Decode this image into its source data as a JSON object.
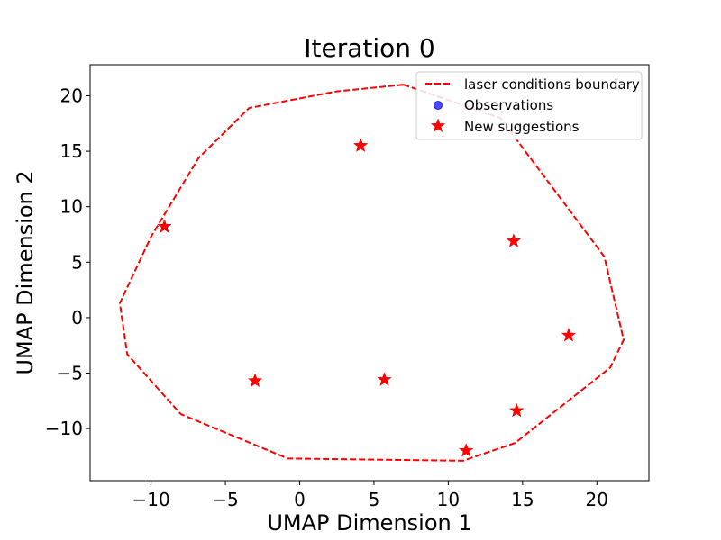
{
  "chart_data": {
    "type": "scatter",
    "title": "Iteration 0",
    "xlabel": "UMAP Dimension 1",
    "ylabel": "UMAP Dimension 2",
    "xlim": [
      -14.1,
      23.5
    ],
    "ylim": [
      -14.7,
      22.8
    ],
    "xticks": [
      -10,
      -5,
      0,
      5,
      10,
      15,
      20
    ],
    "xtick_labels": [
      "−10",
      "−5",
      "0",
      "5",
      "10",
      "15",
      "20"
    ],
    "yticks": [
      -10,
      -5,
      0,
      5,
      10,
      15,
      20
    ],
    "ytick_labels": [
      "−10",
      "−5",
      "0",
      "5",
      "10",
      "15",
      "20"
    ],
    "grid": false,
    "legend_position": "top-right",
    "series": [
      {
        "name": "laser conditions boundary",
        "kind": "line",
        "style": "dashed",
        "color": "#ff0000",
        "points": [
          [
            7.0,
            21.0
          ],
          [
            2.5,
            20.4
          ],
          [
            -3.4,
            18.9
          ],
          [
            -6.8,
            14.4
          ],
          [
            -10.0,
            7.3
          ],
          [
            -12.1,
            1.3
          ],
          [
            -11.6,
            -3.3
          ],
          [
            -8.0,
            -8.7
          ],
          [
            -0.8,
            -12.7
          ],
          [
            11.0,
            -12.9
          ],
          [
            14.5,
            -11.3
          ],
          [
            20.9,
            -4.5
          ],
          [
            21.8,
            -2.0
          ],
          [
            20.5,
            5.5
          ],
          [
            13.5,
            18.0
          ],
          [
            7.0,
            21.0
          ]
        ]
      },
      {
        "name": "Observations",
        "kind": "scatter",
        "marker": "circle",
        "color": "#0000ff",
        "points": []
      },
      {
        "name": "New suggestions",
        "kind": "scatter",
        "marker": "star",
        "color": "#ff0000",
        "points": [
          [
            4.1,
            15.5
          ],
          [
            -9.1,
            8.2
          ],
          [
            14.4,
            6.9
          ],
          [
            18.1,
            -1.6
          ],
          [
            -3.0,
            -5.7
          ],
          [
            5.7,
            -5.6
          ],
          [
            14.6,
            -8.4
          ],
          [
            11.2,
            -12.0
          ]
        ]
      }
    ]
  }
}
